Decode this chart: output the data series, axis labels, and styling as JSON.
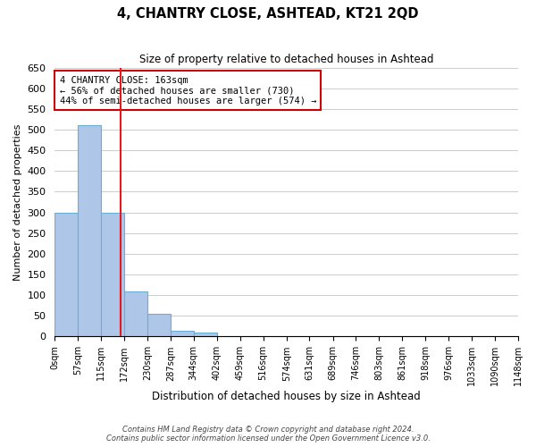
{
  "title": "4, CHANTRY CLOSE, ASHTEAD, KT21 2QD",
  "subtitle": "Size of property relative to detached houses in Ashtead",
  "xlabel": "Distribution of detached houses by size in Ashtead",
  "ylabel": "Number of detached properties",
  "bin_edges": [
    0,
    57,
    115,
    172,
    230,
    287,
    344,
    402,
    459,
    516,
    574,
    631,
    689,
    746,
    803,
    861,
    918,
    976,
    1033,
    1090,
    1148
  ],
  "bin_labels": [
    "0sqm",
    "57sqm",
    "115sqm",
    "172sqm",
    "230sqm",
    "287sqm",
    "344sqm",
    "402sqm",
    "459sqm",
    "516sqm",
    "574sqm",
    "631sqm",
    "689sqm",
    "746sqm",
    "803sqm",
    "861sqm",
    "918sqm",
    "976sqm",
    "1033sqm",
    "1090sqm",
    "1148sqm"
  ],
  "bar_heights": [
    300,
    510,
    300,
    110,
    55,
    15,
    10,
    0,
    0,
    0,
    0,
    0,
    0,
    0,
    0,
    0,
    0,
    0,
    0,
    0
  ],
  "bar_color": "#aec6e8",
  "bar_edge_color": "#6baed6",
  "vline_x": 163,
  "vline_color": "#e8191c",
  "ylim": [
    0,
    650
  ],
  "yticks": [
    0,
    50,
    100,
    150,
    200,
    250,
    300,
    350,
    400,
    450,
    500,
    550,
    600,
    650
  ],
  "annotation_title": "4 CHANTRY CLOSE: 163sqm",
  "annotation_line1": "← 56% of detached houses are smaller (730)",
  "annotation_line2": "44% of semi-detached houses are larger (574) →",
  "annotation_box_color": "#ffffff",
  "annotation_box_edge": "#cc0000",
  "footer_line1": "Contains HM Land Registry data © Crown copyright and database right 2024.",
  "footer_line2": "Contains public sector information licensed under the Open Government Licence v3.0.",
  "background_color": "#ffffff",
  "grid_color": "#cccccc"
}
